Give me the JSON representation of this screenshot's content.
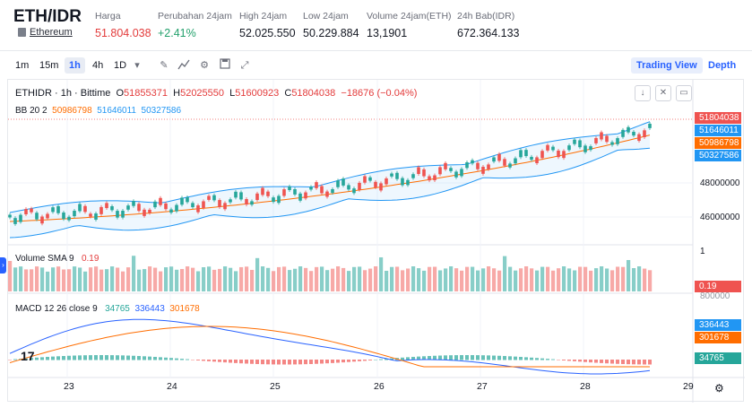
{
  "header": {
    "pair": "ETH/IDR",
    "subtitle": "Ethereum",
    "stats": [
      {
        "label": "Harga",
        "value": "51.804.038",
        "color": "red"
      },
      {
        "label": "Perubahan 24jam",
        "value": "+2.41%",
        "color": "green"
      },
      {
        "label": "High 24jam",
        "value": "52.025.550",
        "color": ""
      },
      {
        "label": "Low 24jam",
        "value": "50.229.884",
        "color": ""
      },
      {
        "label": "Volume 24jam(ETH)",
        "value": "13,1901",
        "color": ""
      },
      {
        "label": "24h Bab(IDR)",
        "value": "672.364.133",
        "color": ""
      }
    ]
  },
  "toolbar": {
    "intervals": [
      "1m",
      "15m",
      "1h",
      "4h",
      "1D"
    ],
    "active_interval": "1h",
    "icons": [
      "chevron-down-icon",
      "draw-icon",
      "indicator-icon",
      "settings-icon",
      "save-icon",
      "fullscreen-icon"
    ],
    "trading_view_label": "Trading View",
    "depth_label": "Depth"
  },
  "legend": {
    "symbol": "ETHIDR · 1h · Bittime",
    "open_label": "O",
    "open": "51855371",
    "high_label": "H",
    "high": "52025550",
    "low_label": "L",
    "low": "51600923",
    "close_label": "C",
    "close": "51804038",
    "change": "−18676 (−0.04%)",
    "bb_name": "BB 20 2",
    "bb_basis": "50986798",
    "bb_upper": "51646011",
    "bb_lower": "50327586",
    "volume_name": "Volume SMA 9",
    "volume_value": "0.19",
    "macd_name": "MACD 12 26 close 9",
    "macd_hist": "34765",
    "macd_line": "336443",
    "macd_signal": "301678"
  },
  "price_axis": {
    "ticks": [
      "48000000",
      "46000000"
    ],
    "labels": {
      "last": "51804038",
      "upper": "51646011",
      "basis": "50986798",
      "lower": "50327586"
    }
  },
  "volume_axis": {
    "top": "1",
    "label": "0.19"
  },
  "macd_axis": {
    "top": "800000",
    "line": "336443",
    "signal": "301678",
    "hist": "34765"
  },
  "time_axis": [
    "23",
    "24",
    "25",
    "26",
    "27",
    "28",
    "29"
  ],
  "colors": {
    "up": "#26a69a",
    "down": "#ef5350",
    "bb_band": "#2196f3",
    "bb_basis": "#ff6d00",
    "accent": "#2962ff"
  },
  "chart_data": {
    "type": "candlestick",
    "interval": "1h",
    "y_ticks": [
      46000000,
      48000000
    ],
    "last_price": 51804038,
    "x_ticks": [
      "23",
      "24",
      "25",
      "26",
      "27",
      "28",
      "29"
    ]
  }
}
